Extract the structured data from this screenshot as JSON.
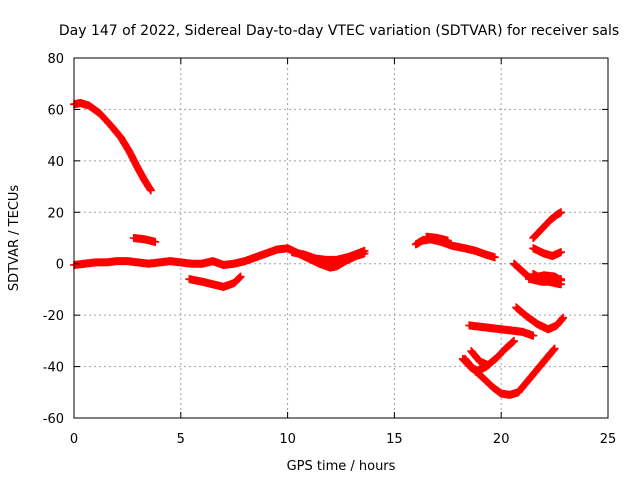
{
  "chart_data": {
    "type": "scatter",
    "title": "Day 147 of 2022, Sidereal Day-to-day VTEC variation (SDTVAR) for receiver sals",
    "xlabel": "GPS time / hours",
    "ylabel": "SDTVAR / TECUs",
    "xlim": [
      0,
      25
    ],
    "ylim": [
      -60,
      80
    ],
    "xticks": [
      0,
      5,
      10,
      15,
      20,
      25
    ],
    "yticks": [
      -60,
      -40,
      -20,
      0,
      20,
      40,
      60,
      80
    ],
    "grid": true,
    "marker": "plus",
    "color": "#ff0000",
    "series": [
      {
        "name": "s1",
        "points": [
          [
            0,
            62
          ],
          [
            0.3,
            62.5
          ],
          [
            0.7,
            61.5
          ],
          [
            1.2,
            58.5
          ],
          [
            1.7,
            54
          ],
          [
            2.2,
            49
          ],
          [
            2.6,
            43.5
          ],
          [
            3.0,
            37
          ],
          [
            3.3,
            32.5
          ],
          [
            3.6,
            28.5
          ]
        ]
      },
      {
        "name": "s2",
        "points": [
          [
            0,
            -0.5
          ],
          [
            0.5,
            0
          ],
          [
            1,
            0.5
          ],
          [
            1.5,
            0.5
          ],
          [
            2,
            1
          ],
          [
            2.5,
            1
          ],
          [
            3,
            0.5
          ],
          [
            3.5,
            0
          ],
          [
            4,
            0.5
          ],
          [
            4.5,
            1
          ],
          [
            5,
            0.5
          ],
          [
            5.5,
            0
          ],
          [
            6,
            0
          ],
          [
            6.5,
            1
          ],
          [
            7,
            -0.5
          ],
          [
            7.5,
            0
          ],
          [
            8,
            1
          ],
          [
            8.5,
            2.5
          ],
          [
            9,
            4
          ],
          [
            9.5,
            5.5
          ],
          [
            10,
            6
          ],
          [
            10.5,
            4
          ],
          [
            11,
            2
          ],
          [
            11.5,
            0
          ],
          [
            12,
            -1.5
          ],
          [
            12.3,
            -1
          ],
          [
            12.7,
            1
          ],
          [
            13.2,
            3
          ],
          [
            13.6,
            4
          ]
        ]
      },
      {
        "name": "s3",
        "points": [
          [
            2.8,
            10
          ],
          [
            3.3,
            9.5
          ],
          [
            3.8,
            8.5
          ]
        ]
      },
      {
        "name": "s4",
        "points": [
          [
            5.4,
            -6
          ],
          [
            6,
            -7
          ],
          [
            6.5,
            -8
          ],
          [
            7,
            -9
          ],
          [
            7.5,
            -7.5
          ],
          [
            7.8,
            -5
          ]
        ]
      },
      {
        "name": "s5",
        "points": [
          [
            10.2,
            4.5
          ],
          [
            10.8,
            3.5
          ],
          [
            11.3,
            2
          ],
          [
            11.8,
            1.5
          ],
          [
            12.3,
            1.5
          ],
          [
            12.8,
            2.5
          ],
          [
            13.3,
            4
          ],
          [
            13.6,
            5
          ]
        ]
      },
      {
        "name": "s6",
        "points": [
          [
            16,
            7.5
          ],
          [
            16.3,
            9
          ],
          [
            16.7,
            9.5
          ],
          [
            17.2,
            8.5
          ],
          [
            17.7,
            7
          ],
          [
            18.3,
            6
          ],
          [
            18.8,
            5
          ],
          [
            19.3,
            3.5
          ],
          [
            19.7,
            2.5
          ]
        ]
      },
      {
        "name": "s7",
        "points": [
          [
            16.5,
            10.5
          ],
          [
            17,
            10
          ],
          [
            17.5,
            9
          ]
        ]
      },
      {
        "name": "s8",
        "points": [
          [
            20.6,
            0
          ],
          [
            21,
            -3
          ],
          [
            21.4,
            -6
          ],
          [
            21.9,
            -7
          ],
          [
            22.4,
            -7
          ],
          [
            22.8,
            -6
          ]
        ]
      },
      {
        "name": "s9",
        "points": [
          [
            21.5,
            -4
          ],
          [
            22,
            -6.5
          ],
          [
            22.5,
            -7.5
          ],
          [
            22.8,
            -8
          ]
        ]
      },
      {
        "name": "s10",
        "points": [
          [
            21.3,
            -6
          ],
          [
            22,
            -4.5
          ],
          [
            22.5,
            -5
          ],
          [
            22.8,
            -6.5
          ]
        ]
      },
      {
        "name": "s11",
        "points": [
          [
            21.5,
            10
          ],
          [
            21.9,
            13.5
          ],
          [
            22.3,
            17
          ],
          [
            22.6,
            19
          ],
          [
            22.8,
            20
          ]
        ]
      },
      {
        "name": "s12",
        "points": [
          [
            21.5,
            6
          ],
          [
            22,
            4
          ],
          [
            22.4,
            3
          ],
          [
            22.8,
            4.5
          ]
        ]
      },
      {
        "name": "s13",
        "points": [
          [
            18.5,
            -24
          ],
          [
            19,
            -24.5
          ],
          [
            19.5,
            -25
          ],
          [
            20,
            -25.5
          ],
          [
            20.5,
            -26
          ],
          [
            21,
            -26.5
          ],
          [
            21.5,
            -28
          ]
        ]
      },
      {
        "name": "s14",
        "points": [
          [
            20.7,
            -17
          ],
          [
            21.2,
            -20.5
          ],
          [
            21.7,
            -23.5
          ],
          [
            22.2,
            -25.5
          ],
          [
            22.6,
            -24
          ],
          [
            22.9,
            -21
          ]
        ]
      },
      {
        "name": "s15",
        "points": [
          [
            18.3,
            -37
          ],
          [
            18.7,
            -41
          ],
          [
            19.1,
            -44
          ],
          [
            19.6,
            -48
          ],
          [
            20,
            -50.5
          ],
          [
            20.4,
            -51
          ],
          [
            20.8,
            -50
          ],
          [
            21.2,
            -46
          ],
          [
            21.6,
            -42
          ],
          [
            22,
            -38
          ],
          [
            22.3,
            -35
          ],
          [
            22.5,
            -33
          ]
        ]
      },
      {
        "name": "s16",
        "points": [
          [
            18.2,
            -37
          ],
          [
            18.6,
            -40.5
          ],
          [
            19,
            -42
          ]
        ]
      },
      {
        "name": "s17",
        "points": [
          [
            18.6,
            -34
          ],
          [
            19,
            -38
          ],
          [
            19.4,
            -39.5
          ]
        ]
      },
      {
        "name": "s18",
        "points": [
          [
            18.8,
            -42
          ],
          [
            19.3,
            -40
          ],
          [
            19.8,
            -36.5
          ],
          [
            20.2,
            -33
          ],
          [
            20.6,
            -30
          ]
        ]
      }
    ]
  }
}
